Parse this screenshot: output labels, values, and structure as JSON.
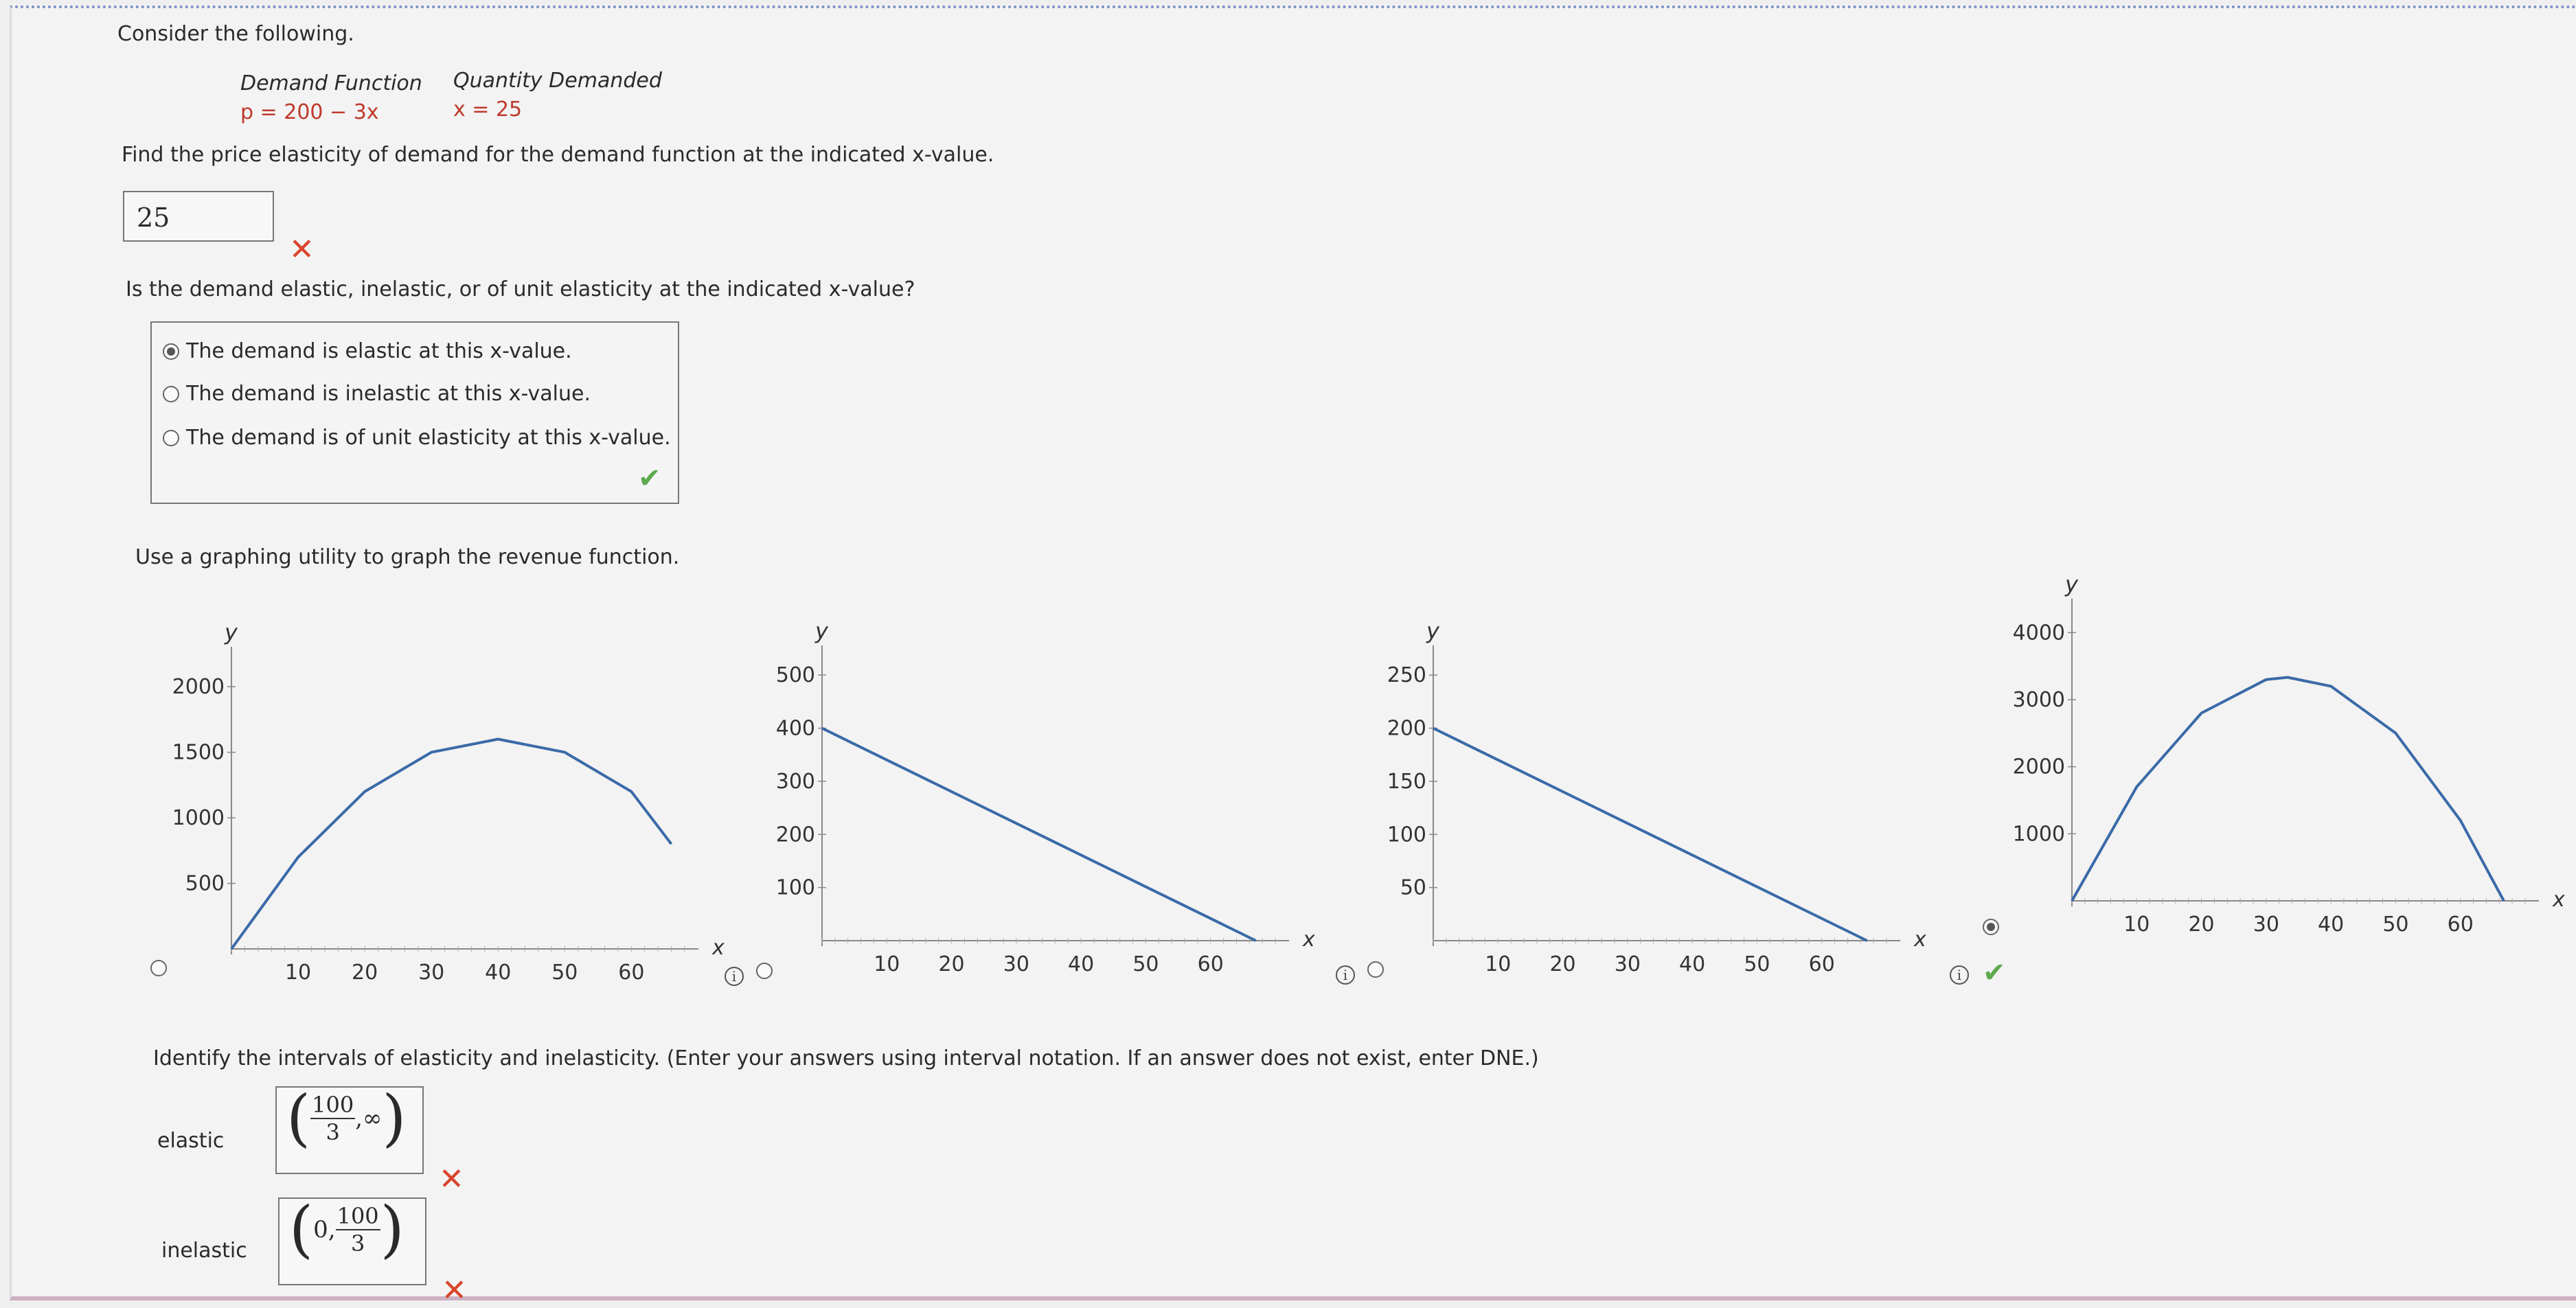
{
  "intro": "Consider the following.",
  "table": {
    "demand_header": "Demand Function",
    "quantity_header": "Quantity Demanded",
    "demand_value": "p = 200 − 3x",
    "quantity_value": "x = 25"
  },
  "q1": {
    "prompt": "Find the price elasticity of demand for the demand function at the indicated x-value.",
    "answer": "25",
    "result": "incorrect"
  },
  "q2": {
    "prompt": "Is the demand elastic, inelastic, or of unit elasticity at the indicated x-value?",
    "options": [
      "The demand is elastic at this x-value.",
      "The demand is inelastic at this x-value.",
      "The demand is of unit elasticity at this x-value."
    ],
    "selected_index": 0,
    "result": "correct"
  },
  "q3": {
    "prompt": "Use a graphing utility to graph the revenue function.",
    "selected_index": 3,
    "result": "correct"
  },
  "chart_data": [
    {
      "type": "line",
      "xlabel": "x",
      "ylabel": "y",
      "xticks": [
        "10",
        "20",
        "30",
        "40",
        "50",
        "60"
      ],
      "yticks": [
        "500",
        "1000",
        "1500",
        "2000"
      ],
      "xlim": [
        0,
        68
      ],
      "ylim": [
        0,
        2200
      ],
      "series": [
        {
          "x": [
            0,
            10,
            20,
            30,
            40,
            50,
            60,
            66
          ],
          "y": [
            0,
            700,
            1200,
            1500,
            1600,
            1500,
            1200,
            800
          ]
        }
      ]
    },
    {
      "type": "line",
      "xlabel": "x",
      "ylabel": "y",
      "xticks": [
        "10",
        "20",
        "30",
        "40",
        "50",
        "60"
      ],
      "yticks": [
        "100",
        "200",
        "300",
        "400",
        "500"
      ],
      "xlim": [
        0,
        70
      ],
      "ylim": [
        0,
        530
      ],
      "series": [
        {
          "x": [
            0,
            67
          ],
          "y": [
            400,
            0
          ]
        }
      ]
    },
    {
      "type": "line",
      "xlabel": "x",
      "ylabel": "y",
      "xticks": [
        "10",
        "20",
        "30",
        "40",
        "50",
        "60"
      ],
      "yticks": [
        "50",
        "100",
        "150",
        "200",
        "250"
      ],
      "xlim": [
        0,
        70
      ],
      "ylim": [
        0,
        265
      ],
      "series": [
        {
          "x": [
            0,
            67
          ],
          "y": [
            200,
            0
          ]
        }
      ]
    },
    {
      "type": "line",
      "xlabel": "x",
      "ylabel": "y",
      "xticks": [
        "10",
        "20",
        "30",
        "40",
        "50",
        "60"
      ],
      "yticks": [
        "1000",
        "2000",
        "3000",
        "4000"
      ],
      "xlim": [
        0,
        70
      ],
      "ylim": [
        0,
        4300
      ],
      "series": [
        {
          "x": [
            0,
            10,
            20,
            30,
            33.3,
            40,
            50,
            60,
            66.7
          ],
          "y": [
            0,
            1700,
            2800,
            3300,
            3333,
            3200,
            2500,
            1200,
            0
          ]
        }
      ]
    }
  ],
  "q4": {
    "prompt": "Identify the intervals of elasticity and inelasticity. (Enter your answers using interval notation. If an answer does not exist, enter DNE.)",
    "elastic_label": "elastic",
    "inelastic_label": "inelastic",
    "elastic_answer": {
      "num": "100",
      "den": "3",
      "rest": ",∞"
    },
    "inelastic_answer": {
      "lead": "0,",
      "num": "100",
      "den": "3"
    },
    "elastic_result": "incorrect",
    "inelastic_result": "incorrect"
  },
  "colors": {
    "curve": "#3a6aa8",
    "wrong": "#d9452c",
    "right": "#5da94e"
  }
}
